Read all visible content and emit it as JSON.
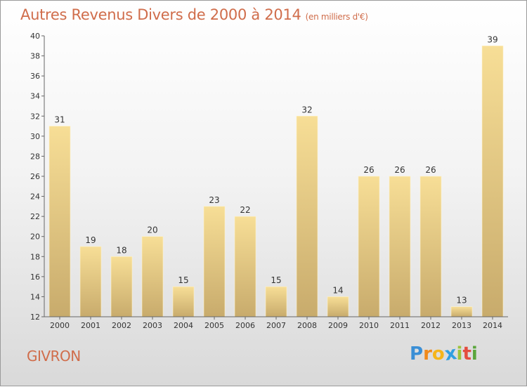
{
  "title": "Autres Revenus Divers de 2000 à 2014",
  "subtitle": "(en milliers d'€)",
  "commune": "GIVRON",
  "logo": {
    "letters": [
      "P",
      "r",
      "o",
      "x",
      "i",
      "t",
      "i"
    ],
    "colors": [
      "#3a8fd6",
      "#f08a1c",
      "#f5b51a",
      "#2f9fe0",
      "#9bc43b",
      "#e44c3f",
      "#5aa63c"
    ]
  },
  "chart_data": {
    "type": "bar",
    "categories": [
      "2000",
      "2001",
      "2002",
      "2003",
      "2004",
      "2005",
      "2006",
      "2007",
      "2008",
      "2009",
      "2010",
      "2011",
      "2012",
      "2013",
      "2014"
    ],
    "values": [
      31,
      19,
      18,
      20,
      15,
      23,
      22,
      15,
      32,
      14,
      26,
      26,
      26,
      13,
      39
    ],
    "ylim": [
      12,
      40
    ],
    "yticks": [
      12,
      14,
      16,
      18,
      20,
      22,
      24,
      26,
      28,
      30,
      32,
      34,
      36,
      38,
      40
    ],
    "grid": false,
    "bar_color_top": "#f7de96",
    "bar_color_bottom": "#c8ab6c"
  }
}
